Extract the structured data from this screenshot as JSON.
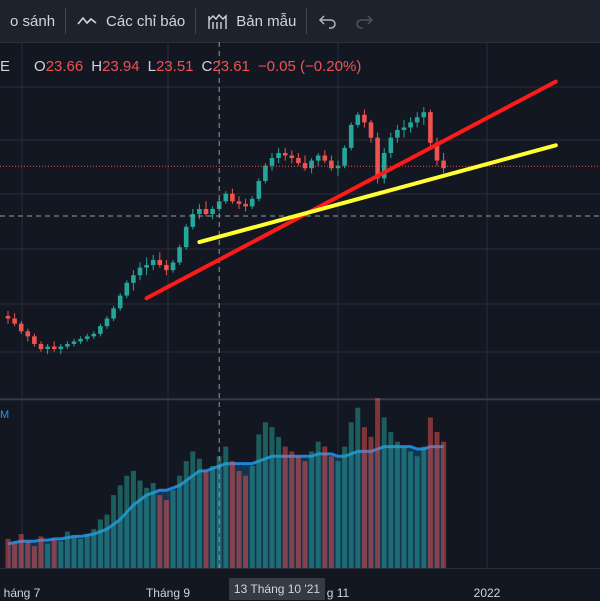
{
  "toolbar": {
    "compare_label": "o sánh",
    "indicators_label": "Các chỉ báo",
    "templates_label": "Bản mẫu"
  },
  "legend": {
    "symbol_tail": "E",
    "open_label": "O",
    "open_value": "23.66",
    "high_label": "H",
    "high_value": "23.94",
    "low_label": "L",
    "low_value": "23.51",
    "close_label": "C",
    "close_value": "23.61",
    "change": "−0.05 (−0.20%)"
  },
  "volume_panel": {
    "label": "M"
  },
  "time_axis": {
    "labels": [
      "háng 7",
      "Tháng 9",
      "g 11",
      "2022"
    ],
    "crosshair_label": "13 Tháng 10 '21"
  },
  "colors": {
    "background": "#131722",
    "up": "#26a69a",
    "down": "#ef5350",
    "trend_red": "#ff1a1a",
    "trend_yellow": "#ffff33",
    "volume_area": "#2196f3"
  },
  "chart_data": {
    "type": "candlestick",
    "ohlc": [
      [
        23.1,
        23.2,
        22.95,
        23.05
      ],
      [
        23.05,
        23.15,
        22.9,
        22.95
      ],
      [
        22.95,
        23.0,
        22.75,
        22.8
      ],
      [
        22.8,
        22.85,
        22.6,
        22.7
      ],
      [
        22.7,
        22.75,
        22.5,
        22.55
      ],
      [
        22.55,
        22.6,
        22.4,
        22.45
      ],
      [
        22.45,
        22.55,
        22.35,
        22.5
      ],
      [
        22.5,
        22.6,
        22.4,
        22.45
      ],
      [
        22.45,
        22.55,
        22.35,
        22.5
      ],
      [
        22.5,
        22.6,
        22.45,
        22.55
      ],
      [
        22.55,
        22.65,
        22.5,
        22.6
      ],
      [
        22.6,
        22.7,
        22.55,
        22.65
      ],
      [
        22.65,
        22.75,
        22.6,
        22.7
      ],
      [
        22.7,
        22.8,
        22.65,
        22.75
      ],
      [
        22.75,
        22.95,
        22.7,
        22.9
      ],
      [
        22.9,
        23.1,
        22.85,
        23.05
      ],
      [
        23.05,
        23.3,
        23.0,
        23.25
      ],
      [
        23.25,
        23.55,
        23.2,
        23.5
      ],
      [
        23.5,
        23.8,
        23.45,
        23.75
      ],
      [
        23.75,
        24.0,
        23.6,
        23.9
      ],
      [
        23.9,
        24.15,
        23.8,
        24.05
      ],
      [
        24.05,
        24.25,
        23.9,
        24.1
      ],
      [
        24.1,
        24.3,
        24.0,
        24.2
      ],
      [
        24.2,
        24.35,
        24.05,
        24.1
      ],
      [
        24.1,
        24.2,
        23.9,
        24.0
      ],
      [
        24.0,
        24.2,
        23.95,
        24.15
      ],
      [
        24.15,
        24.5,
        24.1,
        24.45
      ],
      [
        24.45,
        24.9,
        24.4,
        24.85
      ],
      [
        24.85,
        25.2,
        24.8,
        25.1
      ],
      [
        25.1,
        25.3,
        25.0,
        25.2
      ],
      [
        25.2,
        25.35,
        25.05,
        25.1
      ],
      [
        25.1,
        25.25,
        25.0,
        25.2
      ],
      [
        25.2,
        25.4,
        25.15,
        25.35
      ],
      [
        25.35,
        25.55,
        25.3,
        25.5
      ],
      [
        25.5,
        25.6,
        25.3,
        25.35
      ],
      [
        25.35,
        25.45,
        25.2,
        25.3
      ],
      [
        25.3,
        25.4,
        25.15,
        25.25
      ],
      [
        25.25,
        25.45,
        25.2,
        25.4
      ],
      [
        25.4,
        25.8,
        25.35,
        25.75
      ],
      [
        25.75,
        26.1,
        25.7,
        26.05
      ],
      [
        26.05,
        26.3,
        25.95,
        26.2
      ],
      [
        26.2,
        26.4,
        26.1,
        26.3
      ],
      [
        26.3,
        26.4,
        26.15,
        26.25
      ],
      [
        26.25,
        26.35,
        26.1,
        26.2
      ],
      [
        26.2,
        26.3,
        26.05,
        26.1
      ],
      [
        26.1,
        26.25,
        25.95,
        26.0
      ],
      [
        26.0,
        26.2,
        25.9,
        26.15
      ],
      [
        26.15,
        26.3,
        26.05,
        26.25
      ],
      [
        26.25,
        26.35,
        26.1,
        26.15
      ],
      [
        26.15,
        26.25,
        25.95,
        26.0
      ],
      [
        26.0,
        26.15,
        25.85,
        26.05
      ],
      [
        26.05,
        26.45,
        26.0,
        26.4
      ],
      [
        26.4,
        26.9,
        26.35,
        26.85
      ],
      [
        26.85,
        27.1,
        26.8,
        27.05
      ],
      [
        27.05,
        27.15,
        26.8,
        26.9
      ],
      [
        26.9,
        26.95,
        26.5,
        26.6
      ],
      [
        26.6,
        26.7,
        25.7,
        25.8
      ],
      [
        25.8,
        26.4,
        25.7,
        26.3
      ],
      [
        26.3,
        26.7,
        26.2,
        26.6
      ],
      [
        26.6,
        26.85,
        26.5,
        26.75
      ],
      [
        26.75,
        26.95,
        26.6,
        26.8
      ],
      [
        26.8,
        27.0,
        26.7,
        26.9
      ],
      [
        26.9,
        27.1,
        26.8,
        27.0
      ],
      [
        27.0,
        27.2,
        26.85,
        27.1
      ],
      [
        27.1,
        27.15,
        26.4,
        26.5
      ],
      [
        26.5,
        26.6,
        26.05,
        26.15
      ],
      [
        26.15,
        26.3,
        25.9,
        26.0
      ]
    ],
    "volume": [
      12,
      10,
      14,
      11,
      9,
      13,
      10,
      12,
      11,
      15,
      13,
      12,
      14,
      16,
      20,
      22,
      30,
      34,
      38,
      40,
      36,
      33,
      35,
      30,
      28,
      32,
      38,
      44,
      48,
      45,
      40,
      42,
      46,
      50,
      44,
      40,
      38,
      42,
      55,
      60,
      58,
      54,
      50,
      48,
      46,
      44,
      48,
      52,
      50,
      46,
      44,
      50,
      60,
      66,
      58,
      54,
      70,
      62,
      56,
      52,
      50,
      48,
      46,
      50,
      62,
      56,
      52
    ],
    "volume_ma": [
      10,
      10.5,
      11,
      11,
      11,
      11.5,
      11.5,
      12,
      12,
      12.5,
      13,
      13,
      13.5,
      14,
      15,
      16,
      18,
      20,
      23,
      26,
      28,
      30,
      31,
      32,
      32,
      33,
      34,
      36,
      38,
      40,
      40,
      41,
      42,
      43,
      43,
      43,
      43,
      43,
      44,
      45,
      46,
      46,
      46,
      46,
      46,
      46,
      46,
      47,
      47,
      47,
      46,
      46,
      47,
      48,
      48,
      48,
      49,
      50,
      50,
      50,
      50,
      50,
      49,
      49,
      50,
      50,
      50
    ],
    "trendlines": [
      {
        "color": "red",
        "from": [
          21,
          23.45
        ],
        "to": [
          83,
          27.7
        ]
      },
      {
        "color": "yellow",
        "from": [
          29,
          24.55
        ],
        "to": [
          83,
          26.45
        ]
      }
    ],
    "crosshair_index": 32
  }
}
